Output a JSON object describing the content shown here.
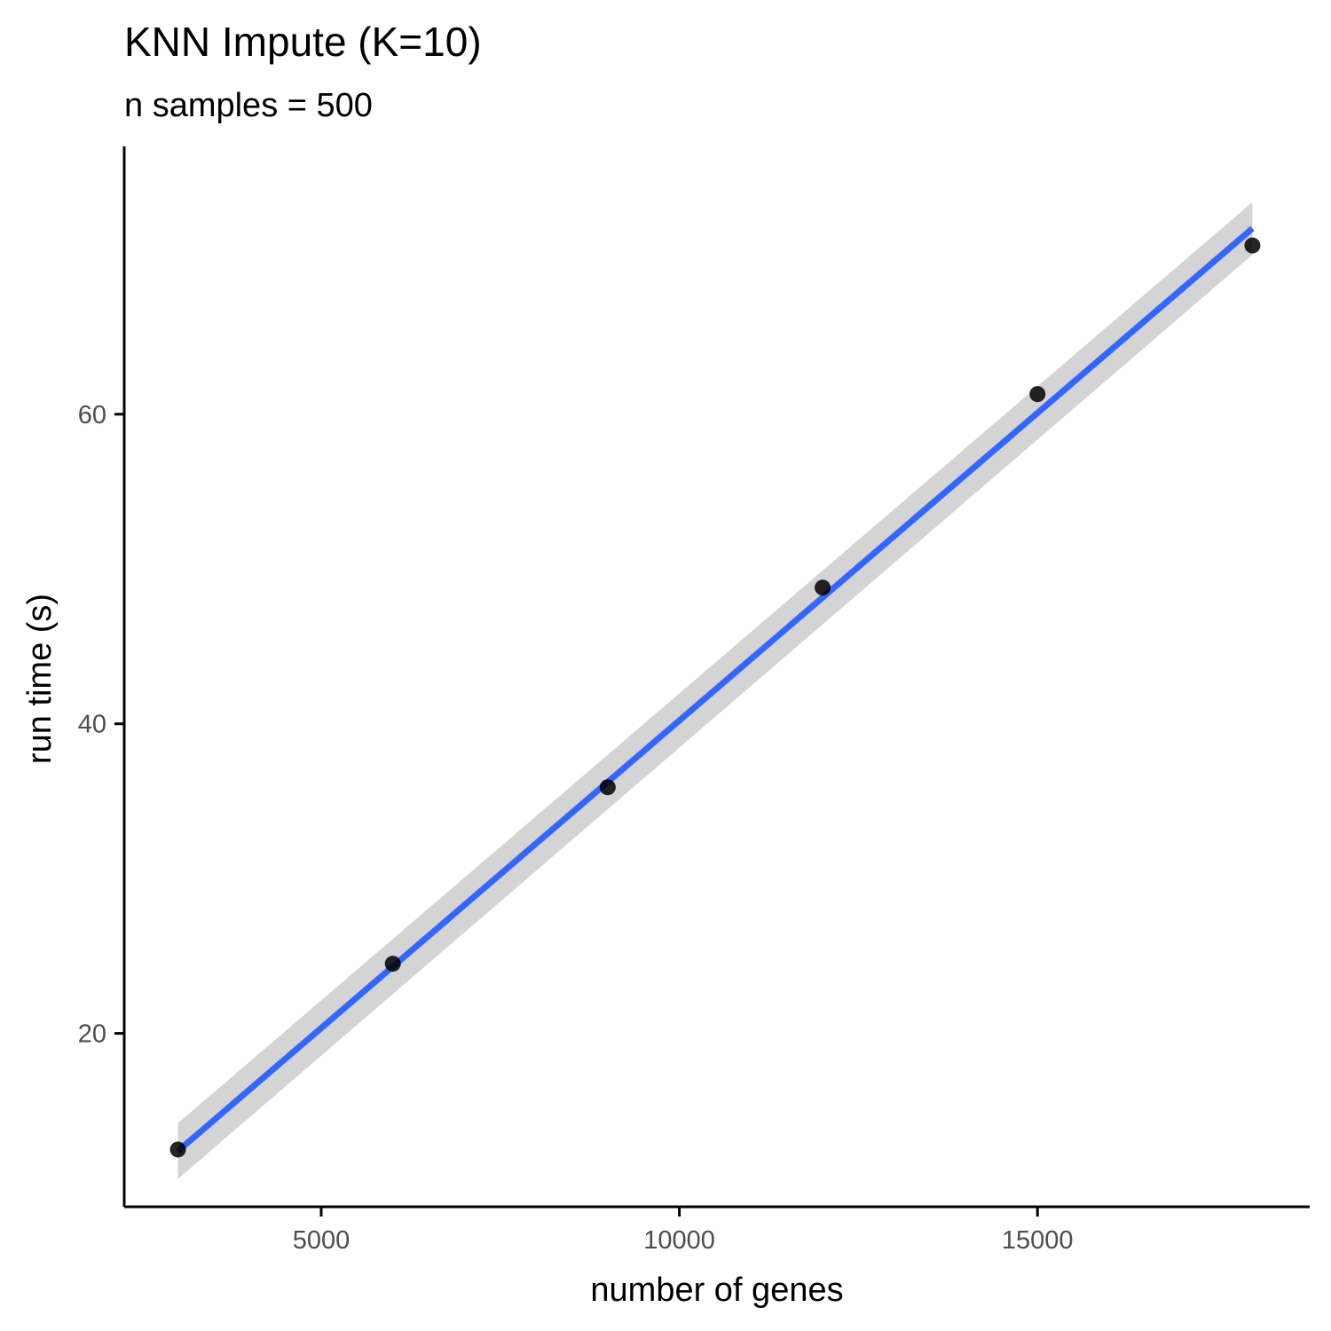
{
  "chart_data": {
    "type": "scatter",
    "title": "KNN Impute (K=10)",
    "subtitle": "n samples = 500",
    "xlabel": "number of genes",
    "ylabel": "run time (s)",
    "xlim": [
      2250,
      18800
    ],
    "ylim": [
      8.8,
      77.3
    ],
    "xticks": [
      5000,
      10000,
      15000
    ],
    "yticks": [
      20,
      40,
      60
    ],
    "grid": false,
    "points": [
      {
        "x": 3000,
        "y": 12.5
      },
      {
        "x": 6000,
        "y": 24.5
      },
      {
        "x": 9000,
        "y": 35.9
      },
      {
        "x": 12000,
        "y": 48.8
      },
      {
        "x": 15000,
        "y": 61.3
      },
      {
        "x": 18000,
        "y": 70.9
      }
    ],
    "fit": {
      "method": "linear",
      "x": [
        3000,
        18000
      ],
      "y": [
        12.4,
        72.0
      ],
      "ci_lower": [
        10.6,
        70.3
      ],
      "ci_upper": [
        14.2,
        73.7
      ]
    },
    "colors": {
      "points": "#000000",
      "fit_line": "#3366ff",
      "ci_band": "#d4d4d4",
      "tick_labels": "#4d4d4d"
    }
  }
}
